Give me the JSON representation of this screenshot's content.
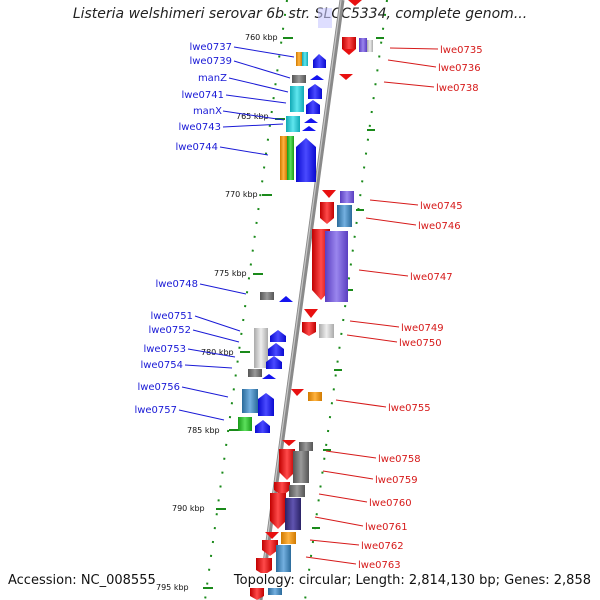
{
  "title": "Listeria welshimeri serovar 6b str. SLCC5334, complete genom...",
  "accession": "Accession: NC_008555",
  "topology": "Topology: circular; Length: 2,814,130 bp; Genes: 2,858",
  "ticks": [
    "760 kbp",
    "765 kbp",
    "770 kbp",
    "775 kbp",
    "780 kbp",
    "785 kbp",
    "790 kbp",
    "795 kbp"
  ],
  "left_genes": [
    "lwe0737",
    "lwe0739",
    "manZ",
    "lwe0741",
    "manX",
    "lwe0743",
    "lwe0744",
    "lwe0748",
    "lwe0751",
    "lwe0752",
    "lwe0753",
    "lwe0754",
    "lwe0756",
    "lwe0757"
  ],
  "right_genes": [
    "lwe0735",
    "lwe0736",
    "lwe0738",
    "lwe0745",
    "lwe0746",
    "lwe0747",
    "lwe0749",
    "lwe0750",
    "lwe0755",
    "lwe0758",
    "lwe0759",
    "lwe0760",
    "lwe0761",
    "lwe0762",
    "lwe0763"
  ],
  "colors": {
    "left_label": "#1a1ad6",
    "right_label": "#d61a1a",
    "forward_arrow": "#1414f0",
    "reverse_arrow": "#e81010",
    "backbone": "#8a8a8a",
    "ruler": "#1a8a1a"
  }
}
